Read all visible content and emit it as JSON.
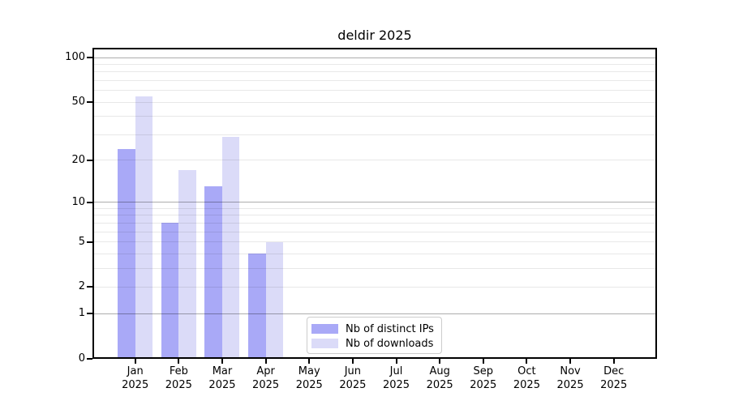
{
  "figure": {
    "title": "deldir 2025"
  },
  "chart_data": {
    "type": "bar",
    "title": "deldir 2025",
    "x_categories": [
      "Jan",
      "Feb",
      "Mar",
      "Apr",
      "May",
      "Jun",
      "Jul",
      "Aug",
      "Sep",
      "Oct",
      "Nov",
      "Dec"
    ],
    "x_year_label": "2025",
    "y_scale": "log1p",
    "y_ticks": [
      0,
      1,
      2,
      5,
      10,
      20,
      50,
      100
    ],
    "ylim": [
      0,
      115
    ],
    "gridlines": {
      "major": [
        1,
        10,
        100
      ],
      "minor": [
        2,
        3,
        4,
        5,
        6,
        7,
        8,
        9,
        20,
        30,
        40,
        50,
        60,
        70,
        80,
        90
      ]
    },
    "series": [
      {
        "name": "Nb of distinct IPs",
        "color": "#a9a9f7",
        "values": [
          24,
          7,
          13,
          4,
          0,
          0,
          0,
          0,
          0,
          0,
          0,
          0
        ]
      },
      {
        "name": "Nb of downloads",
        "color": "#dbdbf8",
        "values": [
          55,
          17,
          29,
          5,
          0,
          0,
          0,
          0,
          0,
          0,
          0,
          0
        ]
      }
    ],
    "legend_position": "lower center"
  }
}
